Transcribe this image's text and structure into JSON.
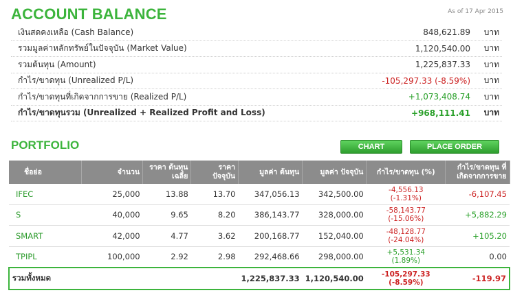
{
  "header": {
    "title": "ACCOUNT BALANCE",
    "as_of": "As of 17 Apr 2015"
  },
  "balance": {
    "unit": "บาท",
    "rows": [
      {
        "label": "เงินสดคงเหลือ (Cash Balance)",
        "value": "848,621.89",
        "tone": ""
      },
      {
        "label": "รวมมูลค่าหลักทรัพย์ในปัจจุบัน (Market Value)",
        "value": "1,120,540.00",
        "tone": ""
      },
      {
        "label": "รวมต้นทุน (Amount)",
        "value": "1,225,837.33",
        "tone": ""
      },
      {
        "label": "กำไร/ขาดทุน (Unrealized P/L)",
        "value": "-105,297.33 (-8.59%)",
        "tone": "red"
      },
      {
        "label": "กำไร/ขาดทุนที่เกิดจากการขาย (Realized P/L)",
        "value": "+1,073,408.74",
        "tone": "green"
      },
      {
        "label": "กำไร/ขาดทุนรวม (Unrealized + Realized Profit and Loss)",
        "value": "+968,111.41",
        "tone": "green"
      }
    ]
  },
  "portfolio": {
    "title": "PORTFOLIO",
    "chart_label": "CHART",
    "place_order_label": "PLACE ORDER",
    "columns": [
      "ชื่อย่อ",
      "จำนวน",
      "ราคา ต้นทุนเฉลี่ย",
      "ราคา ปัจจุบัน",
      "มูลค่า ต้นทุน",
      "มูลค่า ปัจจุบัน",
      "กำไร/ขาดทุน (%)",
      "กำไร/ขาดทุน ที่ เกิดจากการขาย"
    ],
    "rows": [
      {
        "symbol": "IFEC",
        "qty": "25,000",
        "avg_cost": "13.88",
        "price": "13.70",
        "cost_value": "347,056.13",
        "market_value": "342,500.00",
        "pl": "-4,556.13",
        "pl_pct": "(-1.31%)",
        "pl_tone": "red",
        "realized": "-6,107.45",
        "realized_tone": "red"
      },
      {
        "symbol": "S",
        "qty": "40,000",
        "avg_cost": "9.65",
        "price": "8.20",
        "cost_value": "386,143.77",
        "market_value": "328,000.00",
        "pl": "-58,143.77",
        "pl_pct": "(-15.06%)",
        "pl_tone": "red",
        "realized": "+5,882.29",
        "realized_tone": "green"
      },
      {
        "symbol": "SMART",
        "qty": "42,000",
        "avg_cost": "4.77",
        "price": "3.62",
        "cost_value": "200,168.77",
        "market_value": "152,040.00",
        "pl": "-48,128.77",
        "pl_pct": "(-24.04%)",
        "pl_tone": "red",
        "realized": "+105.20",
        "realized_tone": "green"
      },
      {
        "symbol": "TPIPL",
        "qty": "100,000",
        "avg_cost": "2.92",
        "price": "2.98",
        "cost_value": "292,468.66",
        "market_value": "298,000.00",
        "pl": "+5,531.34",
        "pl_pct": "(1.89%)",
        "pl_tone": "green",
        "realized": "0.00",
        "realized_tone": ""
      }
    ],
    "total": {
      "label": "รวมทั้งหมด",
      "cost_value": "1,225,837.33",
      "market_value": "1,120,540.00",
      "pl": "-105,297.33",
      "pl_pct": "(-8.59%)",
      "realized": "-119.97"
    }
  }
}
